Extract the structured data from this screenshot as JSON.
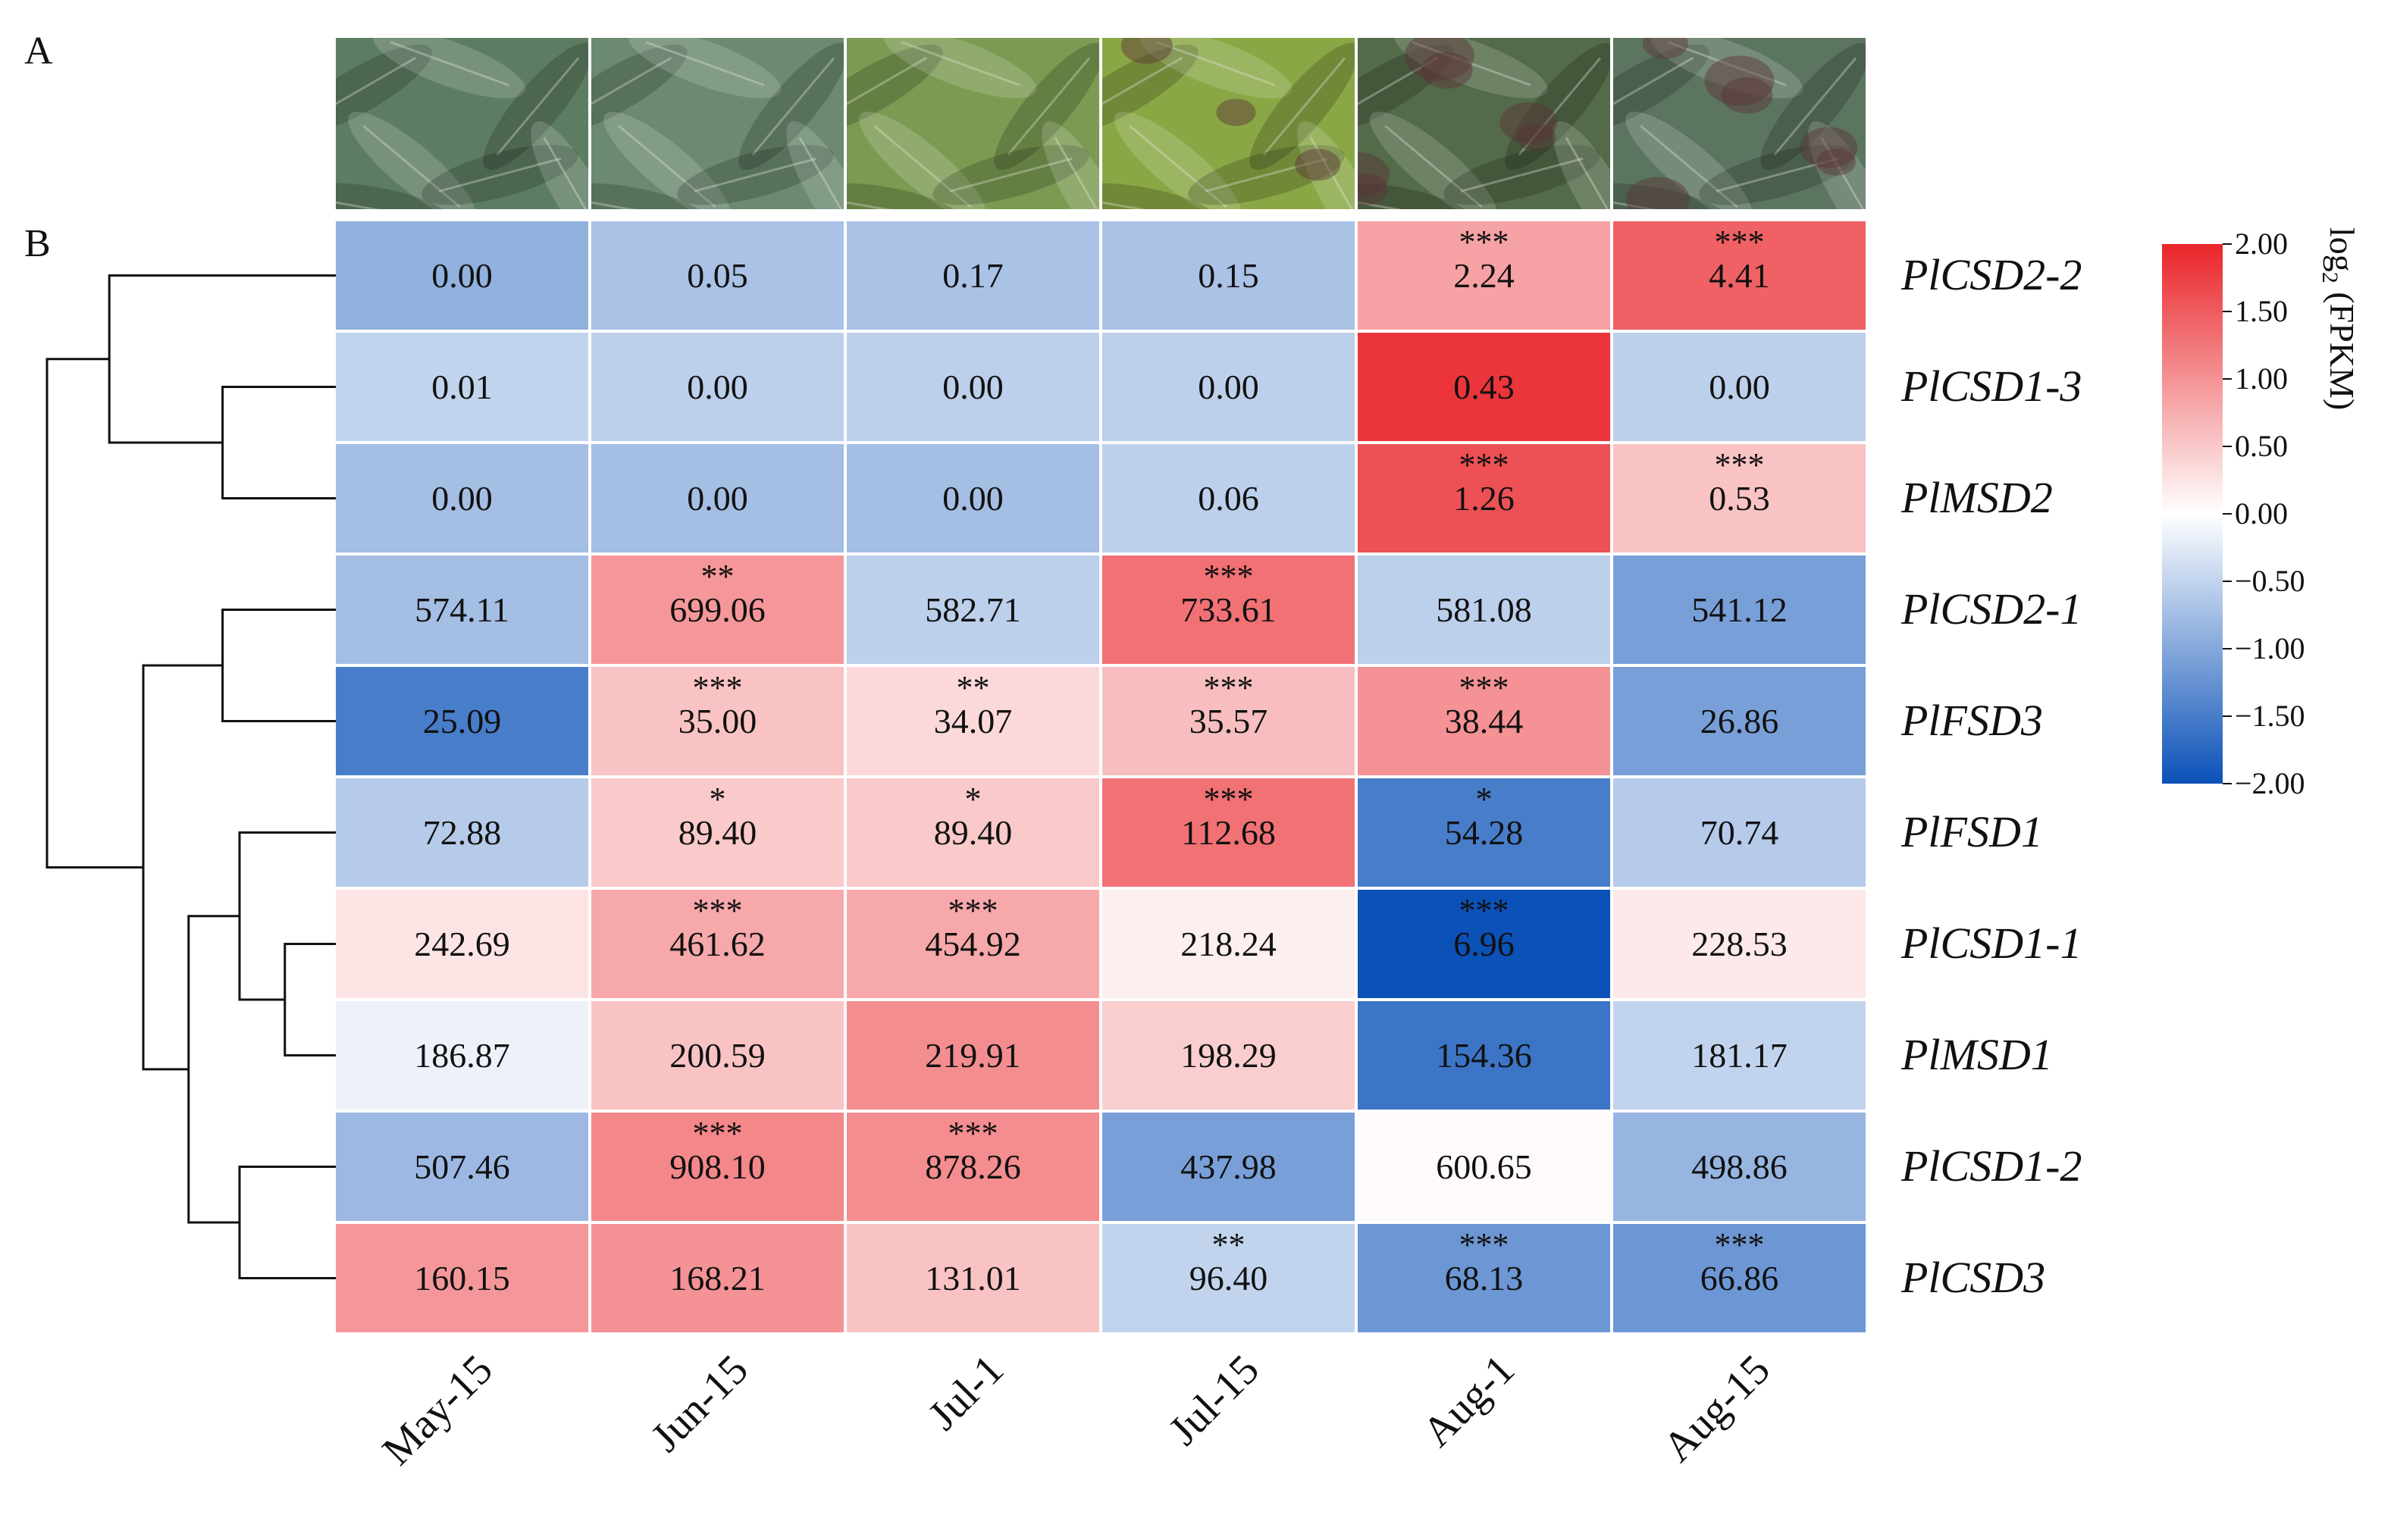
{
  "panel_labels": {
    "a": "A",
    "b": "B"
  },
  "chart_data": {
    "type": "heatmap",
    "title": "",
    "columns": [
      "May-15",
      "Jun-15",
      "Jul-1",
      "Jul-15",
      "Aug-1",
      "Aug-15"
    ],
    "rows": [
      "PlCSD2-2",
      "PlCSD1-3",
      "PlMSD2",
      "PlCSD2-1",
      "PlFSD3",
      "PlFSD1",
      "PlCSD1-1",
      "PlMSD1",
      "PlCSD1-2",
      "PlCSD3"
    ],
    "value_labels": [
      [
        "0.00",
        "0.05",
        "0.17",
        "0.15",
        "2.24",
        "4.41"
      ],
      [
        "0.01",
        "0.00",
        "0.00",
        "0.00",
        "0.43",
        "0.00"
      ],
      [
        "0.00",
        "0.00",
        "0.00",
        "0.06",
        "1.26",
        "0.53"
      ],
      [
        "574.11",
        "699.06",
        "582.71",
        "733.61",
        "581.08",
        "541.12"
      ],
      [
        "25.09",
        "35.00",
        "34.07",
        "35.57",
        "38.44",
        "26.86"
      ],
      [
        "72.88",
        "89.40",
        "89.40",
        "112.68",
        "54.28",
        "70.74"
      ],
      [
        "242.69",
        "461.62",
        "454.92",
        "218.24",
        "6.96",
        "228.53"
      ],
      [
        "186.87",
        "200.59",
        "219.91",
        "198.29",
        "154.36",
        "181.17"
      ],
      [
        "507.46",
        "908.10",
        "878.26",
        "437.98",
        "600.65",
        "498.86"
      ],
      [
        "160.15",
        "168.21",
        "131.01",
        "96.40",
        "68.13",
        "66.86"
      ]
    ],
    "significance": [
      [
        "",
        "",
        "",
        "",
        "***",
        "***"
      ],
      [
        "",
        "",
        "",
        "",
        "",
        ""
      ],
      [
        "",
        "",
        "",
        "",
        "***",
        "***"
      ],
      [
        "",
        "**",
        "",
        "***",
        "",
        ""
      ],
      [
        "",
        "***",
        "**",
        "***",
        "***",
        ""
      ],
      [
        "",
        "*",
        "*",
        "***",
        "*",
        ""
      ],
      [
        "",
        "***",
        "***",
        "",
        "***",
        ""
      ],
      [
        "",
        "",
        "",
        "",
        "",
        ""
      ],
      [
        "",
        "***",
        "***",
        "",
        "",
        ""
      ],
      [
        "",
        "",
        "",
        "**",
        "***",
        "***"
      ]
    ],
    "color_scores": [
      [
        -0.9,
        -0.7,
        -0.7,
        -0.7,
        0.85,
        1.45
      ],
      [
        -0.5,
        -0.55,
        -0.55,
        -0.55,
        1.85,
        -0.55
      ],
      [
        -0.75,
        -0.75,
        -0.75,
        -0.55,
        1.6,
        0.55
      ],
      [
        -0.75,
        0.95,
        -0.55,
        1.3,
        -0.55,
        -1.1
      ],
      [
        -1.5,
        0.55,
        0.35,
        0.6,
        1.0,
        -1.1
      ],
      [
        -0.6,
        0.5,
        0.5,
        1.3,
        -1.5,
        -0.6
      ],
      [
        0.25,
        0.8,
        0.8,
        0.15,
        -2.0,
        0.2
      ],
      [
        -0.15,
        0.55,
        1.05,
        0.45,
        -1.6,
        -0.5
      ],
      [
        -0.8,
        1.1,
        1.05,
        -1.1,
        0.05,
        -0.85
      ],
      [
        0.95,
        1.0,
        0.55,
        -0.5,
        -1.2,
        -1.2
      ]
    ],
    "colorbar": {
      "label": "log",
      "label_sub": "2",
      "label_tail": " (FPKM)",
      "range": [
        -2.0,
        2.0
      ],
      "ticks": [
        "2.00",
        "1.50",
        "1.00",
        "0.50",
        "0.00",
        "−0.50",
        "−1.00",
        "−1.50",
        "−2.00"
      ],
      "colors": {
        "low": "#0b51b8",
        "mid": "#ffffff",
        "high": "#e9252a"
      }
    },
    "dendrogram": {
      "merges": [
        {
          "a": 1,
          "b": 2,
          "height": 1.0
        },
        {
          "a": "r0",
          "b": 0,
          "height": 2.0
        },
        {
          "a": 3,
          "b": 4,
          "height": 1.0
        },
        {
          "a": 6,
          "b": 7,
          "height": 0.45
        },
        {
          "a": 5,
          "b": "r3",
          "height": 0.85
        },
        {
          "a": 8,
          "b": 9,
          "height": 0.85
        },
        {
          "a": "r4",
          "b": "r5",
          "height": 1.3
        },
        {
          "a": "r2",
          "b": "r6",
          "height": 1.7
        },
        {
          "a": "r1",
          "b": "r7",
          "height": 2.55
        }
      ],
      "max_height": 2.55
    }
  },
  "photos": [
    {
      "name": "photo-may-15",
      "tone": "#5d7d62"
    },
    {
      "name": "photo-jun-15",
      "tone": "#6b8a6f"
    },
    {
      "name": "photo-jul-1",
      "tone": "#7b9b52"
    },
    {
      "name": "photo-jul-15",
      "tone": "#8aa746"
    },
    {
      "name": "photo-aug-1",
      "tone": "#536b48"
    },
    {
      "name": "photo-aug-15",
      "tone": "#5c7560"
    }
  ]
}
